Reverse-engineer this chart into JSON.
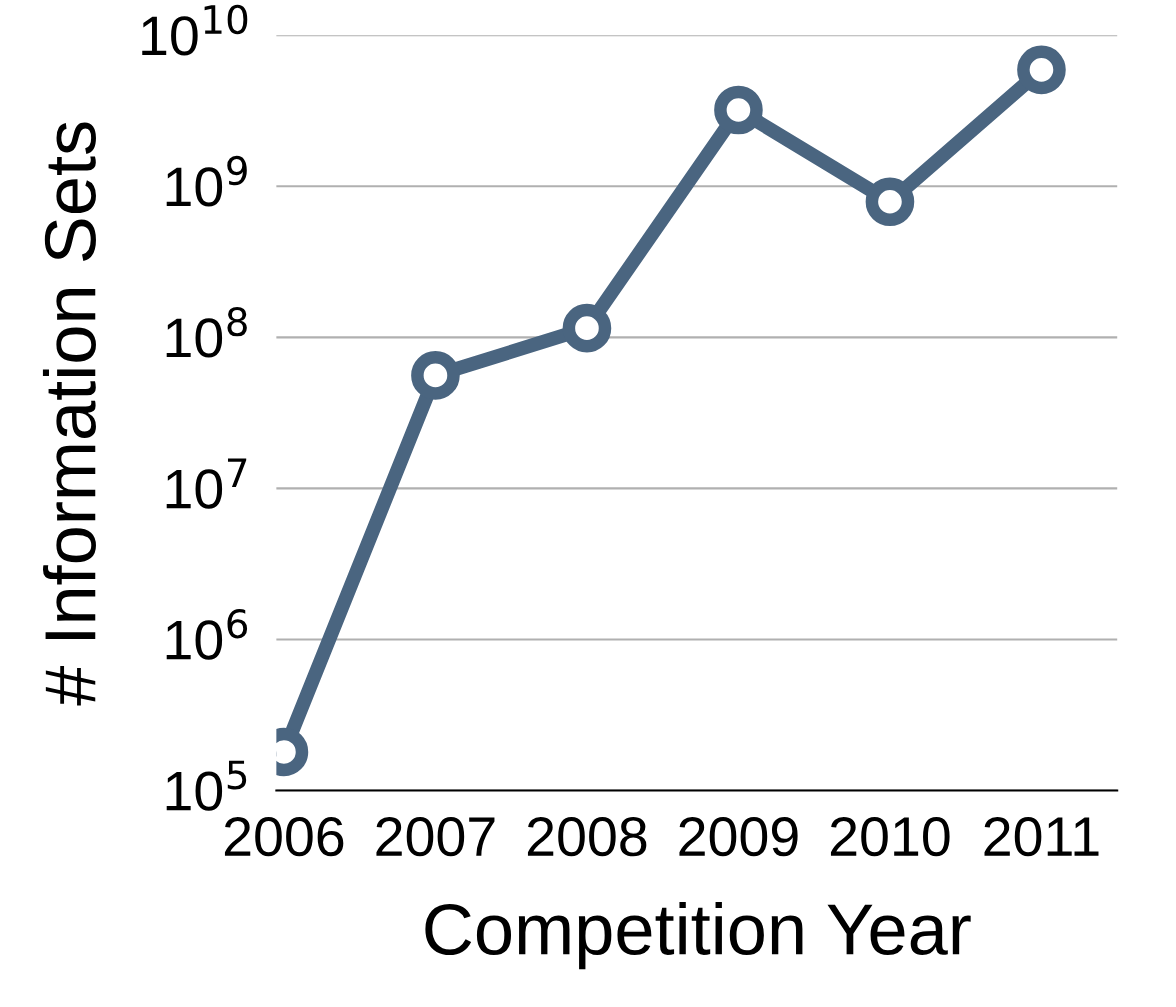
{
  "chart_data": {
    "type": "line",
    "xlabel": "Competition Year",
    "ylabel": "# Information Sets",
    "categories": [
      "2006",
      "2007",
      "2008",
      "2009",
      "2010",
      "2011"
    ],
    "series": [
      {
        "color": "#4a6580",
        "values": [
          180000,
          56000000,
          115000000,
          3200000000,
          790000000,
          5900000000
        ]
      }
    ],
    "log": "y",
    "ylim": [
      100000,
      10000000000
    ],
    "yticks": [
      {
        "value": 100000,
        "label": "10$^{5}$"
      },
      {
        "value": 1000000,
        "label": "10$^{6}$"
      },
      {
        "value": 10000000,
        "label": "10$^{7}$"
      },
      {
        "value": 100000000,
        "label": "10$^{8}$"
      },
      {
        "value": 1000000000,
        "label": "10$^{9}$"
      },
      {
        "value": 10000000000,
        "label": "10$^{10}$"
      }
    ],
    "grid": "y",
    "marker": "circle",
    "line_style": "solid"
  }
}
